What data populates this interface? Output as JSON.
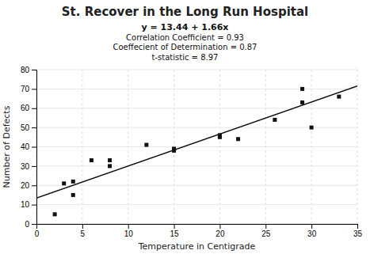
{
  "chart_data": {
    "type": "scatter",
    "title": "St. Recover in the Long Run Hospital",
    "annotations": [
      "y = 13.44 + 1.66x",
      "Correlation Coefficient = 0.93",
      "Coeffecient of Determination = 0.87",
      "t-statistic = 8.97"
    ],
    "xlabel": "Temperature in Centigrade",
    "ylabel": "Number of Defects",
    "series": [
      {
        "type": "scatter",
        "marker": "square",
        "color": "#111111",
        "x": [
          2,
          3,
          4,
          4,
          6,
          8,
          8,
          12,
          15,
          15,
          20,
          20,
          22,
          26,
          29,
          29,
          30,
          33
        ],
        "values": [
          5,
          21,
          22,
          15,
          33,
          30,
          33,
          41,
          38,
          39,
          45,
          46,
          44,
          54,
          70,
          63,
          50,
          66
        ]
      },
      {
        "type": "line",
        "line_style": "solid",
        "color": "#111111",
        "x": [
          0,
          35
        ],
        "values": [
          13.44,
          71.54
        ]
      }
    ],
    "xlim": [
      0,
      35
    ],
    "ylim": [
      0,
      80
    ],
    "xticks": [
      0,
      5,
      10,
      15,
      20,
      25,
      30,
      35
    ],
    "yticks": [
      0,
      10,
      20,
      30,
      40,
      50,
      60,
      70,
      80
    ],
    "grid": true
  }
}
